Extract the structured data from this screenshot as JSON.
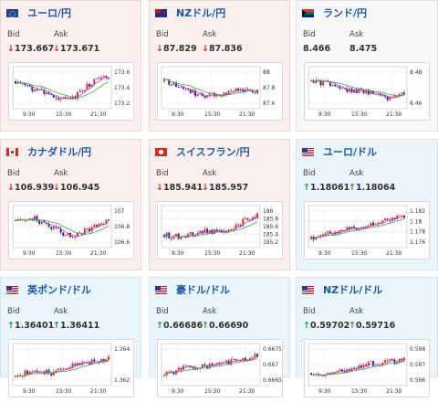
{
  "colors": {
    "down": "#d9262d",
    "up": "#1e9a3b",
    "title": "#1a5aa6",
    "bull": "#e0342a",
    "bear": "#1d2fa0",
    "ma1": "#d040d0",
    "ma2": "#39b039"
  },
  "labels": {
    "bid": "Bid",
    "ask": "Ask"
  },
  "cards": [
    {
      "name": "eur-jpy",
      "title": "ユーロ/円",
      "dir": "down",
      "flag": "eu",
      "bid": "173.667",
      "ask": "173.671",
      "yticks": [
        "173.6",
        "173.4",
        "173.2"
      ],
      "xticks": [
        "9:30",
        "15:30",
        "21:30"
      ]
    },
    {
      "name": "nzd-jpy",
      "title": "NZドル/円",
      "dir": "down",
      "flag": "nz",
      "bid": "87.829",
      "ask": "87.836",
      "yticks": [
        "88",
        "87.8",
        "87.6"
      ],
      "xticks": [
        "9:30",
        "15:30",
        "21:30"
      ]
    },
    {
      "name": "zar-jpy",
      "title": "ランド/円",
      "dir": "none",
      "flag": "za",
      "bid": "8.466",
      "ask": "8.475",
      "yticks": [
        "8.48",
        "8.46"
      ],
      "xticks": [
        "9:30",
        "15:30",
        "21:30"
      ]
    },
    {
      "name": "cad-jpy",
      "title": "カナダドル/円",
      "dir": "down",
      "flag": "ca",
      "bid": "106.939",
      "ask": "106.945",
      "yticks": [
        "107",
        "106.8",
        "106.6"
      ],
      "xticks": [
        "9:30",
        "15:30",
        "21:30"
      ]
    },
    {
      "name": "chf-jpy",
      "title": "スイスフラン/円",
      "dir": "down",
      "flag": "ch",
      "bid": "185.941",
      "ask": "185.957",
      "yticks": [
        "186",
        "185.8",
        "185.6",
        "185.4",
        "185.2"
      ],
      "xticks": [
        "9:30",
        "15:30",
        "21:30"
      ]
    },
    {
      "name": "eur-usd",
      "title": "ユーロ/ドル",
      "dir": "up",
      "flag": "us",
      "bid": "1.18061",
      "ask": "1.18064",
      "yticks": [
        "1.182",
        "1.18",
        "1.178",
        "1.176"
      ],
      "xticks": [
        "9:30",
        "15:30",
        "21:30"
      ]
    },
    {
      "name": "gbp-usd",
      "title": "英ポンド/ドル",
      "dir": "up",
      "flag": "us",
      "bid": "1.36401",
      "ask": "1.36411",
      "yticks": [
        "1.364",
        "1.362"
      ],
      "xticks": [
        "9:30",
        "15:30",
        "21:30"
      ]
    },
    {
      "name": "aud-usd",
      "title": "豪ドル/ドル",
      "dir": "up",
      "flag": "us",
      "bid": "0.66686",
      "ask": "0.66690",
      "yticks": [
        "0.6675",
        "0.667",
        "0.6665"
      ],
      "xticks": [
        "9:30",
        "15:30",
        "21:30"
      ]
    },
    {
      "name": "nzd-usd",
      "title": "NZドル/ドル",
      "dir": "up",
      "flag": "us",
      "bid": "0.59702",
      "ask": "0.59716",
      "yticks": [
        "0.598",
        "0.597",
        "0.596"
      ],
      "xticks": [
        "9:30",
        "15:30",
        "21:30"
      ]
    }
  ]
}
